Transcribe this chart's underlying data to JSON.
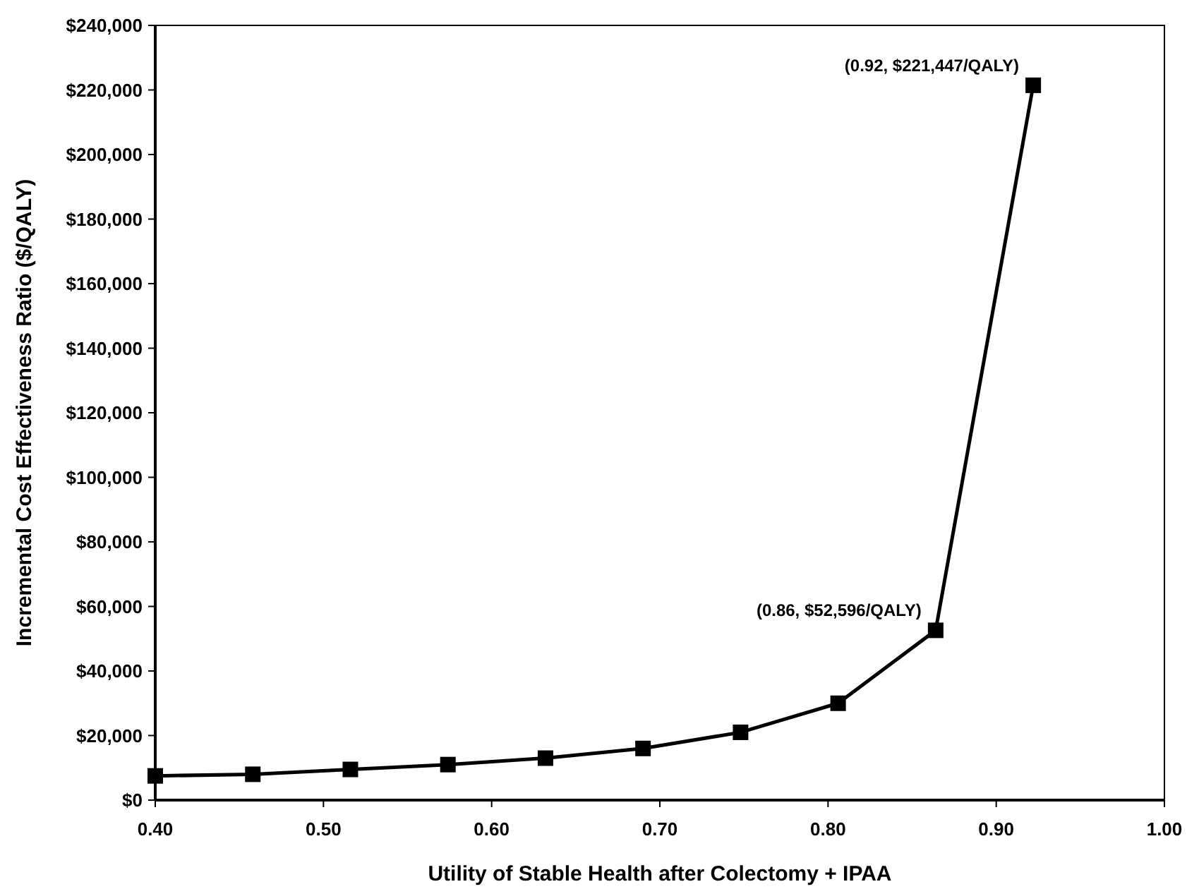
{
  "chart_data": {
    "type": "line",
    "xlabel": "Utility of Stable Health after Colectomy + IPAA",
    "ylabel": "Incremental Cost Effectiveness Ratio ($/QALY)",
    "x": [
      0.4,
      0.458,
      0.516,
      0.574,
      0.632,
      0.69,
      0.748,
      0.806,
      0.864,
      0.922
    ],
    "series": [
      {
        "color": "#000000",
        "values": [
          7500,
          8000,
          9500,
          11000,
          13000,
          16000,
          21000,
          30000,
          52596,
          221447
        ]
      }
    ],
    "xlim": [
      0.4,
      1.0
    ],
    "xticks": [
      {
        "value": 0.4,
        "label": "0.40"
      },
      {
        "value": 0.5,
        "label": "0.50"
      },
      {
        "value": 0.6,
        "label": "0.60"
      },
      {
        "value": 0.7,
        "label": "0.70"
      },
      {
        "value": 0.8,
        "label": "0.80"
      },
      {
        "value": 0.9,
        "label": "0.90"
      },
      {
        "value": 1.0,
        "label": "1.00"
      }
    ],
    "ylim": [
      0,
      240000
    ],
    "yticks": [
      {
        "value": 0,
        "label": "$0"
      },
      {
        "value": 20000,
        "label": "$20,000"
      },
      {
        "value": 40000,
        "label": "$40,000"
      },
      {
        "value": 60000,
        "label": "$60,000"
      },
      {
        "value": 80000,
        "label": "$80,000"
      },
      {
        "value": 100000,
        "label": "$100,000"
      },
      {
        "value": 120000,
        "label": "$120,000"
      },
      {
        "value": 140000,
        "label": "$140,000"
      },
      {
        "value": 160000,
        "label": "$160,000"
      },
      {
        "value": 180000,
        "label": "$180,000"
      },
      {
        "value": 200000,
        "label": "$200,000"
      },
      {
        "value": 220000,
        "label": "$220,000"
      },
      {
        "value": 240000,
        "label": "$240,000"
      }
    ],
    "annotations": [
      {
        "text": "(0.86, $52,596/QALY)",
        "x": 0.864,
        "y": 52596
      },
      {
        "text": "(0.92, $221,447/QALY)",
        "x": 0.922,
        "y": 221447
      }
    ],
    "grid": false,
    "marker": "square",
    "line_style": "solid"
  }
}
